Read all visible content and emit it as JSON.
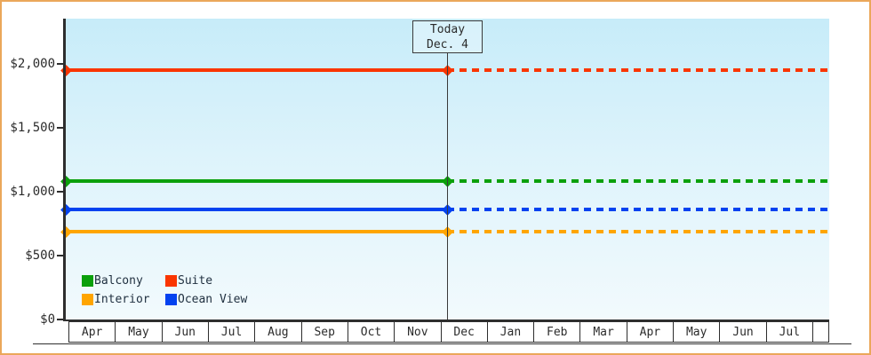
{
  "chart_data": {
    "type": "line",
    "title": "",
    "x_categories": [
      "Apr",
      "May",
      "Jun",
      "Jul",
      "Aug",
      "Sep",
      "Oct",
      "Nov",
      "Dec",
      "Jan",
      "Feb",
      "Mar",
      "Apr",
      "May",
      "Jun",
      "Jul"
    ],
    "y_ticks": [
      {
        "label": "$0",
        "value": 0
      },
      {
        "label": "$500",
        "value": 500
      },
      {
        "label": "$1,000",
        "value": 1000
      },
      {
        "label": "$1,500",
        "value": 1500
      },
      {
        "label": "$2,000",
        "value": 2000
      }
    ],
    "ylim": [
      0,
      2350
    ],
    "grid": false,
    "legend_position": "bottom-left",
    "legend_rows": [
      [
        "Balcony",
        "Suite"
      ],
      [
        "Interior",
        "Ocean View"
      ]
    ],
    "today": {
      "label": "Today",
      "date": "Dec. 4",
      "position_fraction": 0.499
    },
    "series": [
      {
        "name": "Balcony",
        "value": 1080,
        "color": "#0ba00b"
      },
      {
        "name": "Suite",
        "value": 1950,
        "color": "#fa3500"
      },
      {
        "name": "Interior",
        "value": 685,
        "color": "#ffa500"
      },
      {
        "name": "Ocean View",
        "value": 860,
        "color": "#0342f0"
      }
    ],
    "line_style": {
      "before_today": "solid",
      "after_today": "dashed"
    },
    "frame_color": "#eba75a"
  }
}
